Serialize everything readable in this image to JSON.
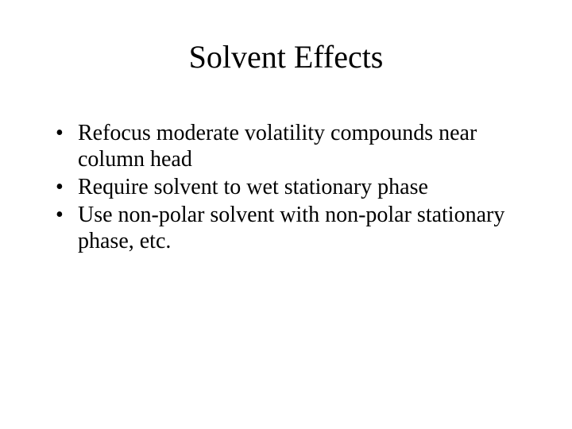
{
  "slide": {
    "title": "Solvent Effects",
    "bullets": [
      "Refocus moderate volatility compounds near column head",
      "Require solvent to wet stationary phase",
      "Use non-polar solvent with non-polar stationary phase, etc."
    ]
  },
  "style": {
    "background_color": "#ffffff",
    "text_color": "#000000",
    "title_fontsize": 40,
    "body_fontsize": 28,
    "font_family": "Times New Roman"
  }
}
